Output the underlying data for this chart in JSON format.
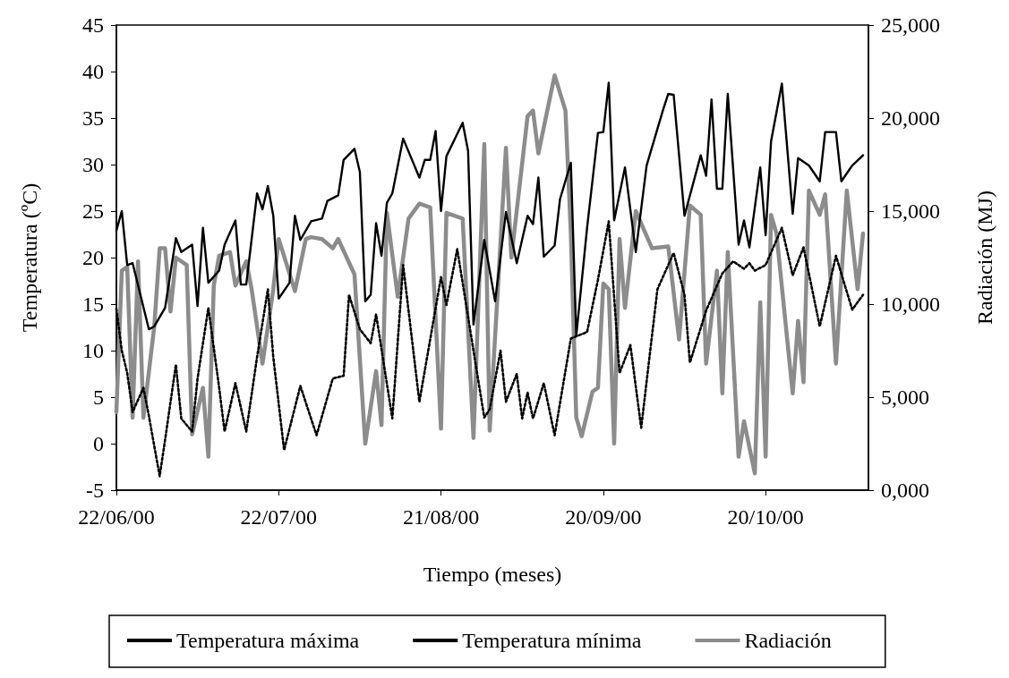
{
  "chart_data": {
    "type": "line",
    "xlabel": "Tiempo (meses)",
    "ylabel": "Temperatura (ºC)",
    "y2label": "Radiación (MJ)",
    "xlim": [
      "2000-06-22",
      "2000-11-08"
    ],
    "xticks": [
      {
        "value": "2000-06-22",
        "label": "22/06/00"
      },
      {
        "value": "2000-07-22",
        "label": "22/07/00"
      },
      {
        "value": "2000-08-21",
        "label": "21/08/00"
      },
      {
        "value": "2000-09-20",
        "label": "20/09/00"
      },
      {
        "value": "2000-10-20",
        "label": "20/10/00"
      }
    ],
    "ylim": [
      -5,
      45
    ],
    "yticks": [
      -5,
      0,
      5,
      10,
      15,
      20,
      25,
      30,
      35,
      40,
      45
    ],
    "y2lim": [
      0,
      25000
    ],
    "y2ticks": [
      {
        "value": 0,
        "label": "0,000"
      },
      {
        "value": 5000,
        "label": "5,000"
      },
      {
        "value": 10000,
        "label": "10,000"
      },
      {
        "value": 15000,
        "label": "15,000"
      },
      {
        "value": 20000,
        "label": "20,000"
      },
      {
        "value": 25000,
        "label": "25,000"
      }
    ],
    "grid": false,
    "legend": "bottom",
    "marker": "none",
    "series": [
      {
        "name": "Temperatura máxima",
        "color": "#000000",
        "line_style": "solid",
        "x": [
          "2000-06-22",
          "2000-06-23",
          "2000-06-24",
          "2000-06-25",
          "2000-06-28",
          "2000-06-29",
          "2000-07-01",
          "2000-07-03",
          "2000-07-04",
          "2000-07-06",
          "2000-07-07",
          "2000-07-08",
          "2000-07-09",
          "2000-07-11",
          "2000-07-12",
          "2000-07-14",
          "2000-07-15",
          "2000-07-16",
          "2000-07-18",
          "2000-07-19",
          "2000-07-20",
          "2000-07-21",
          "2000-07-22",
          "2000-07-24",
          "2000-07-25",
          "2000-07-26",
          "2000-07-28",
          "2000-07-30",
          "2000-07-31",
          "2000-08-02",
          "2000-08-03",
          "2000-08-05",
          "2000-08-06",
          "2000-08-07",
          "2000-08-08",
          "2000-08-09",
          "2000-08-10",
          "2000-08-11",
          "2000-08-12",
          "2000-08-14",
          "2000-08-17",
          "2000-08-18",
          "2000-08-19",
          "2000-08-20",
          "2000-08-21",
          "2000-08-22",
          "2000-08-25",
          "2000-08-26",
          "2000-08-27",
          "2000-08-29",
          "2000-08-31",
          "2000-09-02",
          "2000-09-04",
          "2000-09-06",
          "2000-09-07",
          "2000-09-08",
          "2000-09-09",
          "2000-09-11",
          "2000-09-12",
          "2000-09-14",
          "2000-09-15",
          "2000-09-17",
          "2000-09-19",
          "2000-09-20",
          "2000-09-21",
          "2000-09-22",
          "2000-09-24",
          "2000-09-26",
          "2000-09-28",
          "2000-10-01",
          "2000-10-02",
          "2000-10-03",
          "2000-10-05",
          "2000-10-08",
          "2000-10-09",
          "2000-10-10",
          "2000-10-11",
          "2000-10-12",
          "2000-10-13",
          "2000-10-15",
          "2000-10-16",
          "2000-10-17",
          "2000-10-19",
          "2000-10-20",
          "2000-10-21",
          "2000-10-23",
          "2000-10-25",
          "2000-10-26",
          "2000-10-28",
          "2000-10-30",
          "2000-10-31",
          "2000-11-02",
          "2000-11-03",
          "2000-11-05",
          "2000-11-07"
        ],
        "values": [
          22.9,
          25.0,
          19.2,
          19.4,
          12.3,
          12.6,
          14.6,
          22.1,
          20.6,
          21.4,
          14.8,
          23.2,
          17.3,
          18.6,
          21.4,
          24.0,
          17.1,
          17.1,
          26.9,
          25.2,
          27.7,
          24.5,
          15.6,
          17.3,
          24.5,
          21.9,
          23.9,
          24.2,
          26.1,
          26.7,
          30.5,
          31.7,
          29.2,
          15.3,
          16.0,
          23.7,
          20.2,
          25.9,
          26.9,
          32.8,
          28.6,
          30.5,
          30.5,
          33.6,
          25.0,
          30.9,
          34.5,
          31.5,
          12.8,
          21.9,
          15.3,
          24.9,
          19.4,
          24.5,
          23.6,
          28.6,
          20.1,
          21.3,
          26.3,
          30.2,
          11.6,
          23.2,
          33.4,
          33.5,
          38.8,
          24.0,
          29.7,
          20.6,
          29.9,
          35.8,
          37.6,
          37.5,
          24.5,
          31.0,
          28.8,
          37.0,
          27.4,
          27.4,
          37.6,
          21.4,
          24.0,
          21.1,
          29.7,
          22.4,
          32.5,
          38.7,
          24.7,
          30.7,
          29.9,
          28.2,
          33.5,
          33.5,
          28.2,
          29.9,
          31.0
        ]
      },
      {
        "name": "Temperatura mínima",
        "color": "#000000",
        "line_style": "dotted",
        "x": [
          "2000-06-22",
          "2000-06-23",
          "2000-06-24",
          "2000-06-25",
          "2000-06-27",
          "2000-06-28",
          "2000-06-30",
          "2000-07-01",
          "2000-07-03",
          "2000-07-04",
          "2000-07-06",
          "2000-07-07",
          "2000-07-09",
          "2000-07-11",
          "2000-07-12",
          "2000-07-14",
          "2000-07-16",
          "2000-07-18",
          "2000-07-20",
          "2000-07-21",
          "2000-07-23",
          "2000-07-26",
          "2000-07-29",
          "2000-08-01",
          "2000-08-03",
          "2000-08-04",
          "2000-08-06",
          "2000-08-08",
          "2000-08-09",
          "2000-08-12",
          "2000-08-14",
          "2000-08-17",
          "2000-08-21",
          "2000-08-22",
          "2000-08-24",
          "2000-08-27",
          "2000-08-29",
          "2000-08-30",
          "2000-09-01",
          "2000-09-02",
          "2000-09-04",
          "2000-09-05",
          "2000-09-06",
          "2000-09-07",
          "2000-09-09",
          "2000-09-11",
          "2000-09-14",
          "2000-09-17",
          "2000-09-19",
          "2000-09-21",
          "2000-09-23",
          "2000-09-25",
          "2000-09-27",
          "2000-09-30",
          "2000-10-03",
          "2000-10-05",
          "2000-10-06",
          "2000-10-09",
          "2000-10-12",
          "2000-10-14",
          "2000-10-16",
          "2000-10-17",
          "2000-10-18",
          "2000-10-20",
          "2000-10-23",
          "2000-10-25",
          "2000-10-27",
          "2000-10-30",
          "2000-11-02",
          "2000-11-05",
          "2000-11-07"
        ],
        "values": [
          14.5,
          10.0,
          7.6,
          3.4,
          6.0,
          3.0,
          -3.5,
          0.4,
          8.5,
          2.7,
          1.3,
          7.0,
          14.6,
          6.0,
          1.3,
          6.5,
          1.3,
          9.3,
          16.6,
          9.3,
          -0.7,
          6.2,
          0.9,
          7.0,
          7.3,
          16.0,
          12.3,
          10.8,
          13.9,
          2.7,
          19.2,
          4.5,
          17.9,
          14.9,
          20.9,
          10.0,
          2.8,
          3.7,
          10.0,
          4.5,
          7.5,
          2.7,
          5.5,
          2.7,
          6.5,
          0.9,
          11.3,
          12.0,
          17.6,
          23.9,
          7.6,
          10.6,
          1.7,
          16.6,
          20.5,
          16.0,
          8.7,
          14.3,
          18.3,
          19.6,
          18.8,
          19.4,
          18.6,
          19.2,
          23.2,
          18.1,
          21.1,
          12.6,
          20.2,
          14.4,
          16.0
        ]
      },
      {
        "name": "Radiación",
        "color": "#8c8c8c",
        "line_style": "solid",
        "axis": "y2",
        "x": [
          "2000-06-22",
          "2000-06-23",
          "2000-06-24",
          "2000-06-25",
          "2000-06-26",
          "2000-06-27",
          "2000-06-29",
          "2000-06-30",
          "2000-07-01",
          "2000-07-02",
          "2000-07-03",
          "2000-07-05",
          "2000-07-06",
          "2000-07-08",
          "2000-07-09",
          "2000-07-10",
          "2000-07-11",
          "2000-07-13",
          "2000-07-14",
          "2000-07-16",
          "2000-07-17",
          "2000-07-19",
          "2000-07-21",
          "2000-07-22",
          "2000-07-25",
          "2000-07-27",
          "2000-07-28",
          "2000-07-30",
          "2000-08-01",
          "2000-08-02",
          "2000-08-05",
          "2000-08-07",
          "2000-08-09",
          "2000-08-10",
          "2000-08-11",
          "2000-08-13",
          "2000-08-15",
          "2000-08-17",
          "2000-08-19",
          "2000-08-21",
          "2000-08-22",
          "2000-08-25",
          "2000-08-27",
          "2000-08-29",
          "2000-08-30",
          "2000-09-02",
          "2000-09-03",
          "2000-09-06",
          "2000-09-07",
          "2000-09-08",
          "2000-09-11",
          "2000-09-13",
          "2000-09-14",
          "2000-09-15",
          "2000-09-16",
          "2000-09-18",
          "2000-09-19",
          "2000-09-20",
          "2000-09-21",
          "2000-09-22",
          "2000-09-23",
          "2000-09-24",
          "2000-09-26",
          "2000-09-29",
          "2000-10-02",
          "2000-10-04",
          "2000-10-06",
          "2000-10-08",
          "2000-10-09",
          "2000-10-11",
          "2000-10-12",
          "2000-10-13",
          "2000-10-15",
          "2000-10-16",
          "2000-10-18",
          "2000-10-19",
          "2000-10-20",
          "2000-10-21",
          "2000-10-22",
          "2000-10-25",
          "2000-10-26",
          "2000-10-27",
          "2000-10-28",
          "2000-10-30",
          "2000-10-31",
          "2000-11-02",
          "2000-11-04",
          "2000-11-06",
          "2000-11-07"
        ],
        "values": [
          4200,
          11800,
          12000,
          3900,
          12300,
          3900,
          8800,
          13000,
          13000,
          9600,
          12500,
          12100,
          3000,
          5500,
          1800,
          11000,
          12600,
          12800,
          11000,
          12300,
          10800,
          6800,
          10800,
          13500,
          10700,
          13500,
          13600,
          13500,
          13000,
          13500,
          11600,
          2500,
          6400,
          3500,
          14900,
          10400,
          14600,
          15400,
          15200,
          3300,
          14900,
          14600,
          2800,
          18600,
          3200,
          18400,
          12500,
          20100,
          20400,
          18100,
          22300,
          20400,
          13800,
          3900,
          2900,
          5300,
          5500,
          11100,
          10800,
          2500,
          13500,
          9800,
          15000,
          13000,
          13100,
          8100,
          15300,
          14800,
          6800,
          11800,
          5200,
          12800,
          1800,
          3700,
          900,
          10100,
          1800,
          14800,
          13800,
          5200,
          9100,
          5800,
          16100,
          14800,
          15900,
          6800,
          16100,
          10800,
          13800
        ]
      }
    ]
  }
}
